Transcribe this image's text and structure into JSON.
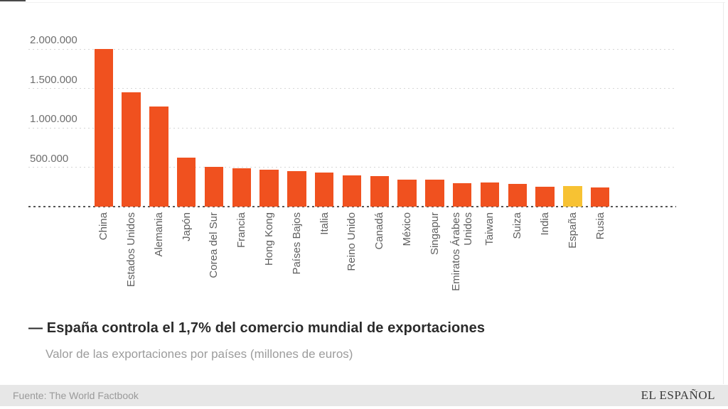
{
  "title": "— España controla el 1,7% del comercio mundial de exportaciones",
  "subtitle": "Valor de las exportaciones por países (millones de euros)",
  "footer": {
    "source": "Fuente: The World Factbook",
    "brand": "EL ESPAÑOL"
  },
  "colors": {
    "bar": "#f0511f",
    "highlight": "#f7c233",
    "gridline": "#d6d6d6",
    "baseline": "#565656"
  },
  "chart_data": {
    "type": "bar",
    "title": "España controla el 1,7% del comercio mundial de exportaciones",
    "subtitle": "Valor de las exportaciones por países (millones de euros)",
    "unit": "millones de euros",
    "xlabel": "",
    "ylabel": "",
    "ylim": [
      0,
      2100000
    ],
    "grid": "horizontal-dotted",
    "legend": "none",
    "highlight_category": "España",
    "categories": [
      "China",
      "Estados Unidos",
      "Alemania",
      "Japón",
      "Corea del Sur",
      "Francia",
      "Hong Kong",
      "Países Bajos",
      "Italia",
      "Reino Unido",
      "Canadá",
      "México",
      "Singapur",
      "Emiratos Árabes Unidos",
      "Taiwan",
      "Suiza",
      "India",
      "España",
      "Rusia"
    ],
    "values": [
      2000000,
      1450000,
      1270000,
      620000,
      505000,
      490000,
      470000,
      450000,
      430000,
      400000,
      390000,
      345000,
      340000,
      300000,
      310000,
      290000,
      255000,
      265000,
      240000
    ],
    "y_ticks": [
      {
        "value": 2000000,
        "label": "2.000.000"
      },
      {
        "value": 1500000,
        "label": "1.500.000"
      },
      {
        "value": 1000000,
        "label": "1.000.000"
      },
      {
        "value": 500000,
        "label": "500.000"
      }
    ]
  }
}
